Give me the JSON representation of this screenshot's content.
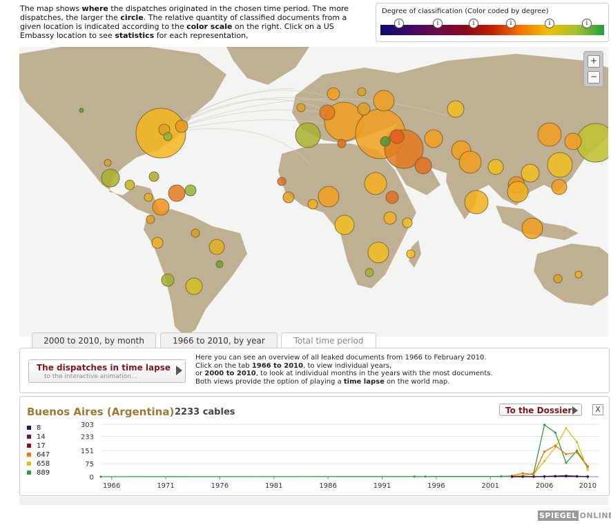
{
  "intro": {
    "p1": "The map shows ",
    "b1": "where",
    "p2": " the dispatches originated in the chosen time period. The more dispatches, the larger the ",
    "b2": "circle",
    "p3": ". The relative quantity of classified documents from a given location is indicated according to the ",
    "b3": "color scale",
    "p4": " on the right. Click on a US Embassy location to see ",
    "b4": "statistics",
    "p5": " for each representation,"
  },
  "legend": {
    "title": "Degree of classification (Color coded by degree)",
    "info_glyph": "i"
  },
  "zoom": {
    "plus": "+",
    "minus": "−"
  },
  "tabs": [
    {
      "label": "2000 to 2010, by month"
    },
    {
      "label": "1966 to 2010, by year"
    },
    {
      "label": "Total time period"
    }
  ],
  "panel": {
    "button_title": "The dispatches in time lapse",
    "button_sub": "to the interactive animation...",
    "t1": "Here you can see an overview of all leaked documents from 1966 to February 2010.",
    "t2a": "Click on the tab ",
    "t2b": "1966 to 2010",
    "t2c": ", to view individual years,",
    "t3a": "or ",
    "t3b": "2000 to 2010",
    "t3c": ", to look at individual months in the years with the most documents.",
    "t4a": "Both views provide the option of playing a ",
    "t4b": "time lapse",
    "t4c": " on the world map."
  },
  "cable_box": {
    "city": "Buenos Aires (Argentina)",
    "count": "2233 cables",
    "dossier": "To the Dossier",
    "close": "X",
    "legend": [
      {
        "value": "8",
        "color": "#1a1a6a"
      },
      {
        "value": "14",
        "color": "#6a1050"
      },
      {
        "value": "17",
        "color": "#8a1010"
      },
      {
        "value": "647",
        "color": "#f07a10"
      },
      {
        "value": "658",
        "color": "#d8c020"
      },
      {
        "value": "889",
        "color": "#28a040"
      }
    ]
  },
  "chart_data": {
    "type": "line",
    "title": "Buenos Aires (Argentina) 2233 cables",
    "xlabel": "",
    "ylabel": "",
    "xlim": [
      1965,
      2011
    ],
    "ylim": [
      0,
      303
    ],
    "y_ticks": [
      "0",
      "75",
      "151",
      "233",
      "303"
    ],
    "x_ticks": [
      "1966",
      "1971",
      "1976",
      "1981",
      "1986",
      "1991",
      "1996",
      "2001",
      "2006",
      "2010"
    ],
    "series": [
      {
        "name": "889",
        "color": "#28a040",
        "x": [
          1965,
          1994,
          1995,
          2002,
          2003,
          2004,
          2005,
          2006,
          2007,
          2008,
          2009,
          2010
        ],
        "y": [
          0,
          1,
          1,
          2,
          4,
          5,
          20,
          300,
          255,
          80,
          150,
          60
        ]
      },
      {
        "name": "658",
        "color": "#d8c020",
        "x": [
          2003,
          2004,
          2005,
          2006,
          2007,
          2008,
          2009,
          2010
        ],
        "y": [
          3,
          8,
          15,
          90,
          170,
          280,
          200,
          40
        ]
      },
      {
        "name": "647",
        "color": "#f07a10",
        "x": [
          2003,
          2004,
          2005,
          2006,
          2007,
          2008,
          2009,
          2010
        ],
        "y": [
          6,
          20,
          12,
          145,
          180,
          130,
          140,
          55
        ]
      },
      {
        "name": "17",
        "color": "#8a1010",
        "x": [
          2003,
          2004,
          2005,
          2006,
          2007,
          2008,
          2009,
          2010
        ],
        "y": [
          0,
          1,
          0,
          2,
          4,
          6,
          3,
          1
        ]
      },
      {
        "name": "14",
        "color": "#6a1050",
        "x": [
          2003,
          2004,
          2005,
          2006,
          2007,
          2008,
          2009,
          2010
        ],
        "y": [
          0,
          0,
          1,
          1,
          3,
          5,
          2,
          1
        ]
      },
      {
        "name": "8",
        "color": "#1a1a6a",
        "x": [
          2003,
          2004,
          2005,
          2006,
          2007,
          2008,
          2009,
          2010
        ],
        "y": [
          0,
          0,
          0,
          1,
          2,
          2,
          1,
          0
        ]
      }
    ]
  },
  "brand": {
    "part1": "SPIEGEL",
    "part2": "ONLINE"
  }
}
